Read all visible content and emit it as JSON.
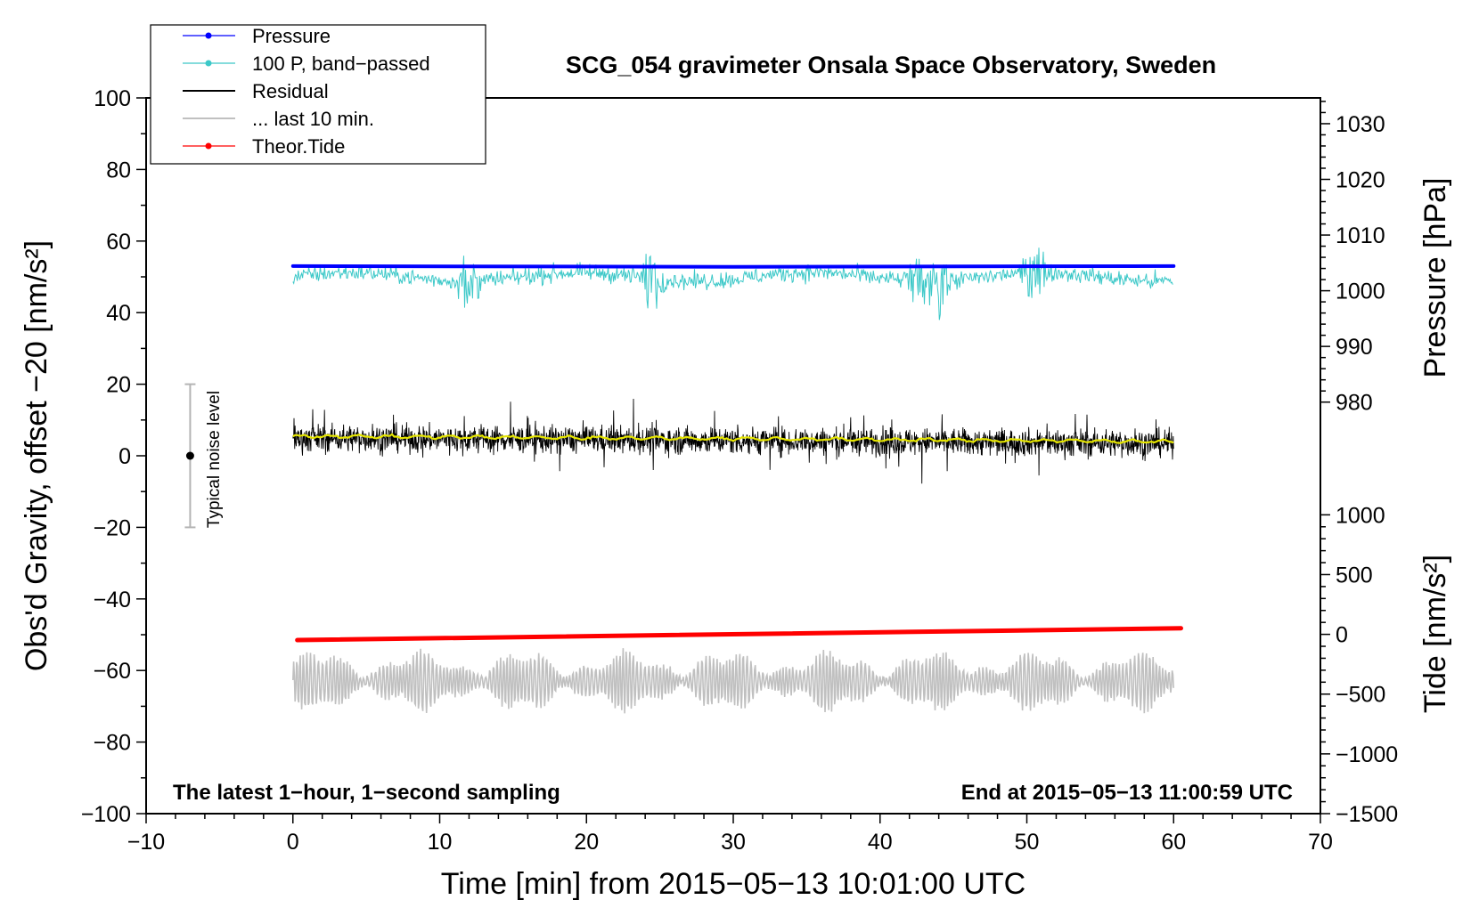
{
  "chart_data": {
    "type": "line",
    "title": "SCG_054 gravimeter Onsala Space Observatory, Sweden",
    "xlabel": "Time [min] from 2015−05−13 10:01:00 UTC",
    "ylabel_left": "Obs'd Gravity, offset −20 [nm/s²]",
    "ylabel_pressure": "Pressure [hPa]",
    "ylabel_tide": "Tide [nm/s²]",
    "xlim": [
      -10,
      70
    ],
    "ylim": [
      -100,
      100
    ],
    "x_ticks": [
      -10,
      0,
      10,
      20,
      30,
      40,
      50,
      60,
      70
    ],
    "x_tick_labels": [
      "−10",
      "0",
      "10",
      "20",
      "30",
      "40",
      "50",
      "60",
      "70"
    ],
    "y_ticks": [
      -100,
      -80,
      -60,
      -40,
      -20,
      0,
      20,
      40,
      60,
      80,
      100
    ],
    "y_tick_labels": [
      "−100",
      "−80",
      "−60",
      "−40",
      "−20",
      "0",
      "20",
      "40",
      "60",
      "80",
      "100"
    ],
    "pressure_axis": {
      "ticks": [
        980,
        990,
        1000,
        1010,
        1020,
        1030
      ],
      "tick_labels": [
        "980",
        "990",
        "1000",
        "1010",
        "1020",
        "1030"
      ],
      "map": {
        "hpa_a": 980,
        "gravity_a": 15,
        "hpa_b": 1030,
        "gravity_b": 92.8
      }
    },
    "tide_axis": {
      "ticks": [
        -1500,
        -1000,
        -500,
        0,
        500,
        1000
      ],
      "tick_labels": [
        "−1500",
        "−1000",
        "−500",
        "0",
        "500",
        "1000"
      ],
      "map": {
        "tide_a": -1500,
        "gravity_a": -100,
        "tide_b": 1000,
        "gravity_b": -16.5
      }
    },
    "legend": [
      {
        "label": "Pressure",
        "color": "#0000ff",
        "marker": "dot"
      },
      {
        "label": "100 P, band−passed",
        "color": "#3cc8c8",
        "marker": "dot"
      },
      {
        "label": "Residual",
        "color": "#000000",
        "marker": "line"
      },
      {
        "label": "... last 10 min.",
        "color": "#c0c0c0",
        "marker": "line"
      },
      {
        "label": "Theor.Tide",
        "color": "#ff0000",
        "marker": "dot"
      }
    ],
    "series": [
      {
        "name": "Pressure",
        "color": "#0000ff",
        "x": [
          0,
          30,
          60
        ],
        "values": [
          53,
          52.8,
          53
        ]
      },
      {
        "name": "100 P, band−passed",
        "color": "#3cc8c8",
        "x_range": [
          0,
          60
        ],
        "mean": 50,
        "spikes_min": [
          12,
          24.5,
          42.5,
          44,
          50.5
        ],
        "spike_max": 65,
        "spike_min": 28
      },
      {
        "name": "Residual",
        "color": "#000000",
        "x_range": [
          0,
          60
        ],
        "mean": 5,
        "max": 17,
        "min": -11
      },
      {
        "name": "Residual smoothed",
        "color": "#e6e600",
        "x": [
          0,
          30,
          60
        ],
        "values": [
          5.5,
          4.8,
          4
        ]
      },
      {
        "name": "... last 10 min.",
        "color": "#c0c0c0",
        "x_range": [
          0,
          60
        ],
        "mean": -63,
        "max": -49,
        "min": -77
      },
      {
        "name": "Theor.Tide",
        "color": "#ff0000",
        "x": [
          0.3,
          60.5
        ],
        "values": [
          -51.5,
          -48.2
        ]
      }
    ],
    "noise_bar": {
      "label": "Typical noise level",
      "x": -7,
      "center": 0,
      "low": -20,
      "high": 20
    },
    "annotation_left": "The latest 1−hour, 1−second sampling",
    "annotation_right": "End at 2015−05−13 11:00:59 UTC"
  }
}
